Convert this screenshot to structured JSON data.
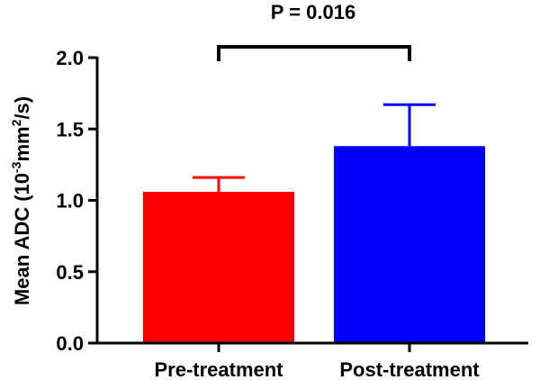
{
  "chart_data": {
    "type": "bar",
    "title": "",
    "xlabel": "",
    "ylabel": {
      "prefix": "Mean ADC (10",
      "exponent": "-3",
      "middle": "mm",
      "exponent2": "2",
      "suffix": "/s)"
    },
    "categories": [
      "Pre-treatment",
      "Post-treatment"
    ],
    "values": [
      1.06,
      1.38
    ],
    "error_upper": [
      0.1,
      0.29
    ],
    "colors": [
      "#ff0000",
      "#0000ff"
    ],
    "ylim": [
      0,
      2.0
    ],
    "yticks": [
      0.0,
      0.5,
      1.0,
      1.5,
      2.0
    ],
    "ytick_labels": [
      "0.0",
      "0.5",
      "1.0",
      "1.5",
      "2.0"
    ],
    "grid": false,
    "annotation": {
      "text": "P = 0.016",
      "between": [
        "Pre-treatment",
        "Post-treatment"
      ]
    }
  }
}
